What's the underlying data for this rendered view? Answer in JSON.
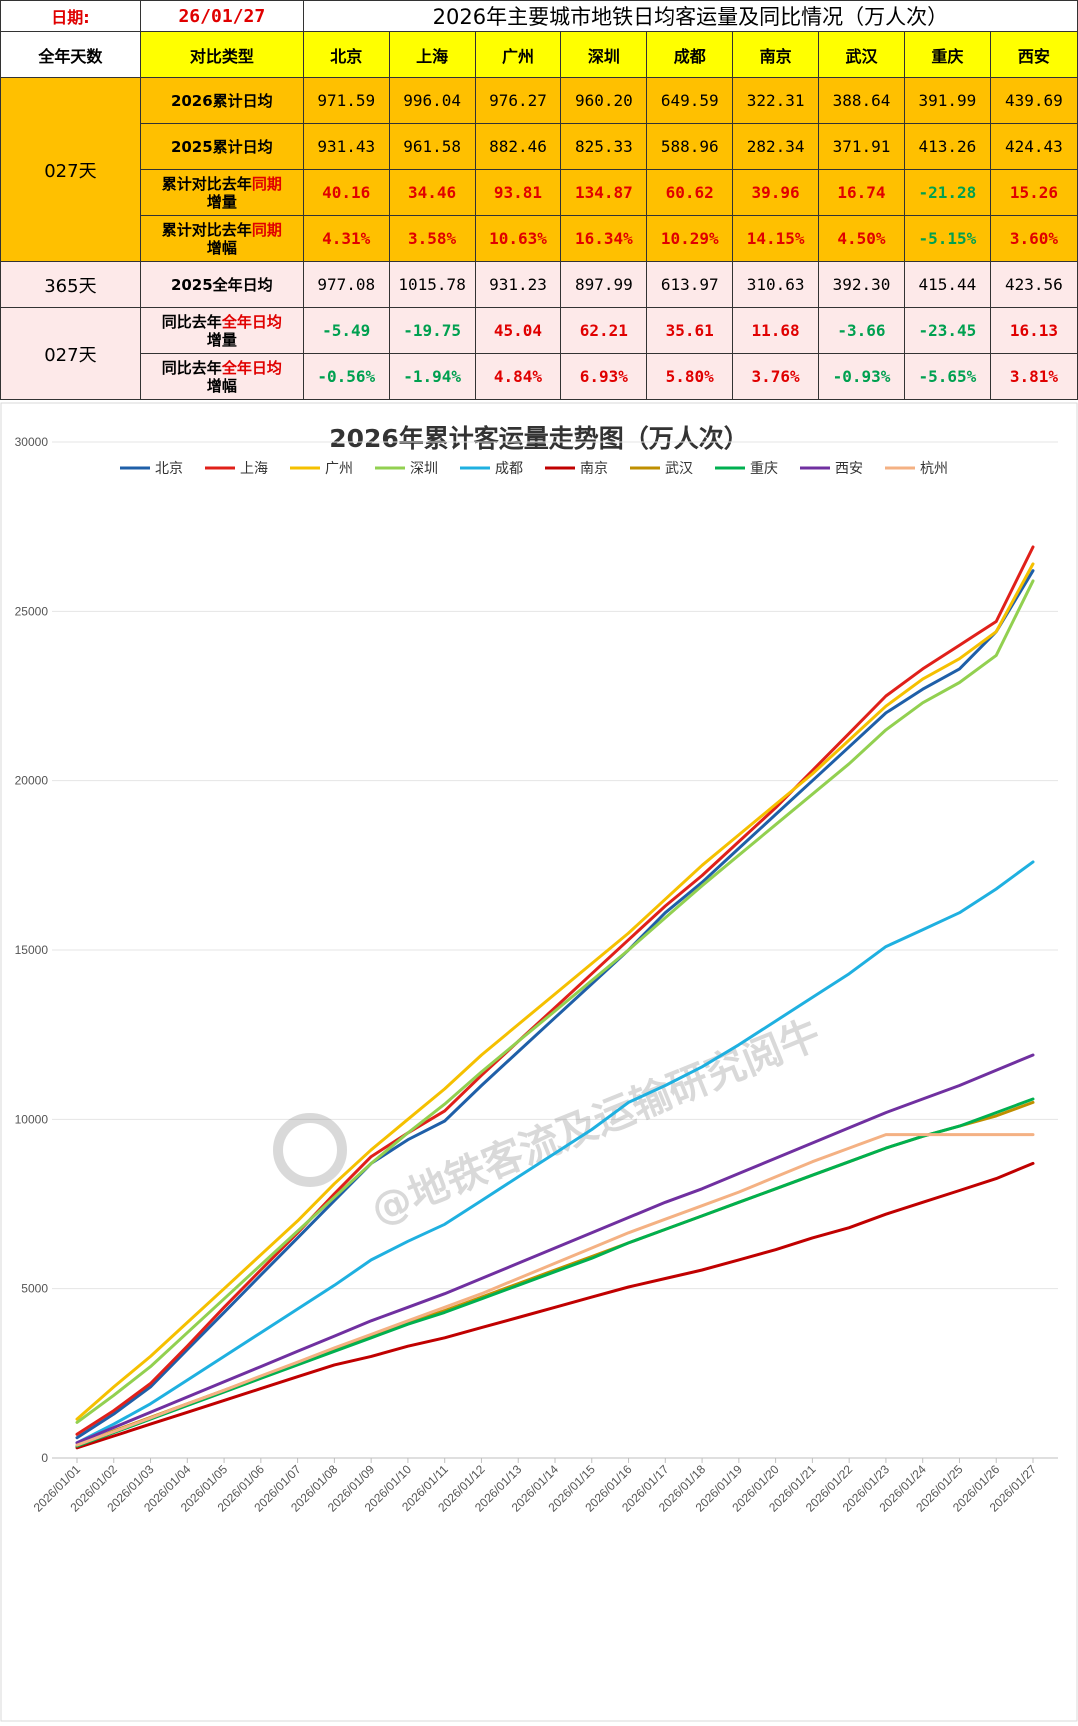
{
  "header": {
    "date_label": "日期:",
    "date_value": "26/01/27",
    "title": "2026年主要城市地铁日均客运量及同比情况（万人次）"
  },
  "table": {
    "col_days": "全年天数",
    "col_type": "对比类型",
    "cities": [
      "北京",
      "上海",
      "广州",
      "深圳",
      "成都",
      "南京",
      "武汉",
      "重庆",
      "西安"
    ],
    "group1_days": "027天",
    "group2_days": "365天",
    "group3_days": "027天",
    "rows": {
      "r2026": {
        "label": "2026累计日均",
        "values": [
          "971.59",
          "996.04",
          "976.27",
          "960.20",
          "649.59",
          "322.31",
          "388.64",
          "391.99",
          "439.69"
        ]
      },
      "r2025": {
        "label": "2025累计日均",
        "values": [
          "931.43",
          "961.58",
          "882.46",
          "825.33",
          "588.96",
          "282.34",
          "371.91",
          "413.26",
          "424.43"
        ]
      },
      "rdiff": {
        "label_a": "累计对比去年",
        "label_hl": "同期",
        "label_b": "增量",
        "values": [
          "40.16",
          "34.46",
          "93.81",
          "134.87",
          "60.62",
          "39.96",
          "16.74",
          "-21.28",
          "15.26"
        ]
      },
      "rpct": {
        "label_a": "累计对比去年",
        "label_hl": "同期",
        "label_b": "增幅",
        "values": [
          "4.31%",
          "3.58%",
          "10.63%",
          "16.34%",
          "10.29%",
          "14.15%",
          "4.50%",
          "-5.15%",
          "3.60%"
        ]
      },
      "rfull": {
        "label": "2025全年日均",
        "values": [
          "977.08",
          "1015.78",
          "931.23",
          "897.99",
          "613.97",
          "310.63",
          "392.30",
          "415.44",
          "423.56"
        ]
      },
      "rfdiff": {
        "label_a": "同比去年",
        "label_hl": "全年日均",
        "label_b": "增量",
        "values": [
          "-5.49",
          "-19.75",
          "45.04",
          "62.21",
          "35.61",
          "11.68",
          "-3.66",
          "-23.45",
          "16.13"
        ]
      },
      "rfpct": {
        "label_a": "同比去年",
        "label_hl": "全年日均",
        "label_b": "增幅",
        "values": [
          "-0.56%",
          "-1.94%",
          "4.84%",
          "6.93%",
          "5.80%",
          "3.76%",
          "-0.93%",
          "-5.65%",
          "3.81%"
        ]
      }
    }
  },
  "colors": {
    "header_yellow": "#ffff00",
    "orange": "#ffc000",
    "pink": "#fde9e9",
    "positive_red": "#e00000",
    "negative_green": "#00a050"
  },
  "watermark": "@地铁客流及运输研究阅牛",
  "chart_data": {
    "type": "line",
    "title": "2026年累计客运量走势图（万人次）",
    "ylim": [
      0,
      30000
    ],
    "yticks": [
      0,
      5000,
      10000,
      15000,
      20000,
      25000,
      30000
    ],
    "grid": true,
    "legend_position": "top",
    "x": [
      "2026/01/01",
      "2026/01/02",
      "2026/01/03",
      "2026/01/04",
      "2026/01/05",
      "2026/01/06",
      "2026/01/07",
      "2026/01/08",
      "2026/01/09",
      "2026/01/10",
      "2026/01/11",
      "2026/01/12",
      "2026/01/13",
      "2026/01/14",
      "2026/01/15",
      "2026/01/16",
      "2026/01/17",
      "2026/01/18",
      "2026/01/19",
      "2026/01/20",
      "2026/01/21",
      "2026/01/22",
      "2026/01/23",
      "2026/01/24",
      "2026/01/25",
      "2026/01/26",
      "2026/01/27"
    ],
    "series": [
      {
        "name": "北京",
        "color": "#1f5fa8",
        "values": [
          600,
          1300,
          2100,
          3200,
          4300,
          5400,
          6500,
          7600,
          8700,
          9400,
          9950,
          11000,
          12000,
          13000,
          14000,
          15000,
          16100,
          17000,
          18000,
          19000,
          20000,
          21000,
          22000,
          22700,
          23300,
          24400,
          26200
        ]
      },
      {
        "name": "上海",
        "color": "#e0201a",
        "values": [
          700,
          1400,
          2200,
          3300,
          4450,
          5550,
          6650,
          7800,
          8900,
          9600,
          10250,
          11300,
          12300,
          13300,
          14300,
          15300,
          16300,
          17200,
          18200,
          19200,
          20300,
          21400,
          22500,
          23300,
          24000,
          24700,
          26900
        ]
      },
      {
        "name": "广州",
        "color": "#f5c000",
        "values": [
          1150,
          2100,
          3000,
          4000,
          5000,
          6000,
          7000,
          8100,
          9100,
          10000,
          10900,
          11900,
          12800,
          13700,
          14600,
          15500,
          16500,
          17500,
          18400,
          19300,
          20200,
          21200,
          22200,
          23000,
          23600,
          24400,
          26400
        ]
      },
      {
        "name": "深圳",
        "color": "#92d050",
        "values": [
          1050,
          1850,
          2700,
          3700,
          4700,
          5700,
          6700,
          7700,
          8700,
          9600,
          10450,
          11400,
          12300,
          13200,
          14100,
          15000,
          15950,
          16900,
          17800,
          18700,
          19600,
          20500,
          21500,
          22300,
          22900,
          23700,
          25900
        ]
      },
      {
        "name": "成都",
        "color": "#1fb0e0",
        "values": [
          450,
          1000,
          1600,
          2300,
          3000,
          3700,
          4400,
          5100,
          5850,
          6400,
          6900,
          7600,
          8300,
          9000,
          9700,
          10500,
          11000,
          11550,
          12200,
          12900,
          13600,
          14300,
          15100,
          15600,
          16100,
          16800,
          17600
        ]
      },
      {
        "name": "南京",
        "color": "#c00000",
        "values": [
          300,
          650,
          1000,
          1350,
          1700,
          2050,
          2400,
          2750,
          3000,
          3300,
          3550,
          3850,
          4150,
          4450,
          4750,
          5050,
          5300,
          5550,
          5850,
          6150,
          6500,
          6800,
          7200,
          7550,
          7900,
          8250,
          8700
        ]
      },
      {
        "name": "武汉",
        "color": "#bf8f00",
        "values": [
          350,
          800,
          1200,
          1600,
          2000,
          2400,
          2800,
          3200,
          3600,
          4000,
          4350,
          4750,
          5150,
          5550,
          5950,
          6350,
          6750,
          7150,
          7550,
          7950,
          8350,
          8750,
          9150,
          9500,
          9800,
          10100,
          10500
        ]
      },
      {
        "name": "重庆",
        "color": "#00b050",
        "values": [
          350,
          750,
          1150,
          1550,
          1950,
          2350,
          2750,
          3150,
          3550,
          3950,
          4300,
          4700,
          5100,
          5500,
          5900,
          6350,
          6750,
          7150,
          7550,
          7950,
          8350,
          8750,
          9150,
          9500,
          9800,
          10200,
          10600
        ]
      },
      {
        "name": "西安",
        "color": "#7030a0",
        "values": [
          450,
          900,
          1350,
          1800,
          2250,
          2700,
          3150,
          3600,
          4050,
          4450,
          4850,
          5300,
          5750,
          6200,
          6650,
          7100,
          7550,
          7950,
          8400,
          8850,
          9300,
          9750,
          10200,
          10600,
          11000,
          11450,
          11900
        ]
      },
      {
        "name": "杭州",
        "color": "#f4b183",
        "values": [
          380,
          780,
          1180,
          1600,
          2000,
          2420,
          2830,
          3250,
          3650,
          4050,
          4450,
          4850,
          5300,
          5750,
          6200,
          6650,
          7050,
          7450,
          7850,
          8300,
          8750,
          9150,
          9550,
          9550,
          9550,
          9550,
          9550
        ]
      }
    ]
  }
}
